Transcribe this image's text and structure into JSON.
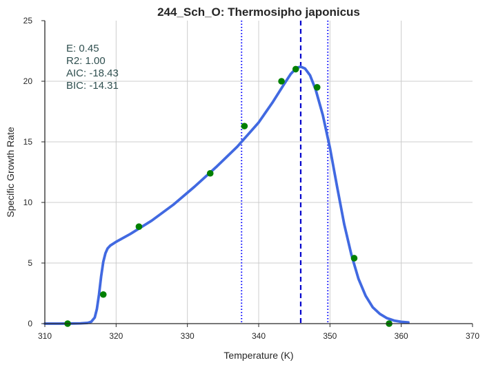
{
  "colors": {
    "curve": "#4169e1",
    "points": "#008000",
    "peak_line": "#0000cc",
    "bound_lines": "#0000ff",
    "grid": "#cccccc",
    "stats_text": "#2f4f4f",
    "axis": "#262626"
  },
  "chart_data": {
    "type": "line",
    "title": "244_Sch_O: Thermosipho japonicus",
    "xlabel": "Temperature (K)",
    "ylabel": "Specific Growth Rate",
    "xlim": [
      310,
      370
    ],
    "ylim": [
      0,
      25
    ],
    "xticks": [
      310,
      320,
      330,
      340,
      350,
      360,
      370
    ],
    "yticks": [
      0,
      5,
      10,
      15,
      20,
      25
    ],
    "grid": true,
    "stats": {
      "e": "E:  0.45",
      "r2": "R2:  1.00",
      "aic": "AIC: -18.43",
      "bic": "BIC: -14.31"
    },
    "observed_points": {
      "x": [
        313.2,
        318.2,
        323.2,
        333.2,
        338.0,
        343.2,
        345.2,
        348.2,
        353.4,
        358.3
      ],
      "y": [
        0.0,
        2.4,
        8.0,
        12.4,
        16.3,
        20.0,
        21.0,
        19.5,
        5.4,
        0.0
      ]
    },
    "fitted_curve": {
      "x": [
        310,
        312,
        314,
        315,
        316,
        316.5,
        317,
        317.3,
        317.6,
        317.9,
        318.2,
        318.5,
        318.8,
        319.2,
        319.6,
        320,
        322,
        325,
        328,
        331,
        334,
        337,
        340,
        342,
        343.5,
        344.5,
        345.3,
        345.9,
        346.5,
        347.2,
        348,
        349,
        350,
        351,
        352,
        353,
        354,
        355,
        356,
        357,
        358,
        359,
        360,
        361
      ],
      "y": [
        0,
        0,
        0.01,
        0.02,
        0.06,
        0.15,
        0.5,
        1.2,
        2.4,
        3.9,
        5.1,
        5.8,
        6.2,
        6.45,
        6.6,
        6.75,
        7.4,
        8.5,
        9.8,
        11.3,
        12.9,
        14.6,
        16.6,
        18.3,
        19.7,
        20.6,
        21.1,
        21.2,
        21.05,
        20.5,
        19.3,
        17.2,
        14.5,
        11.3,
        8.2,
        5.7,
        3.7,
        2.3,
        1.35,
        0.8,
        0.45,
        0.25,
        0.15,
        0.1
      ]
    },
    "peak_line_x": 345.9,
    "bound_lines_x": [
      337.6,
      349.7
    ]
  }
}
